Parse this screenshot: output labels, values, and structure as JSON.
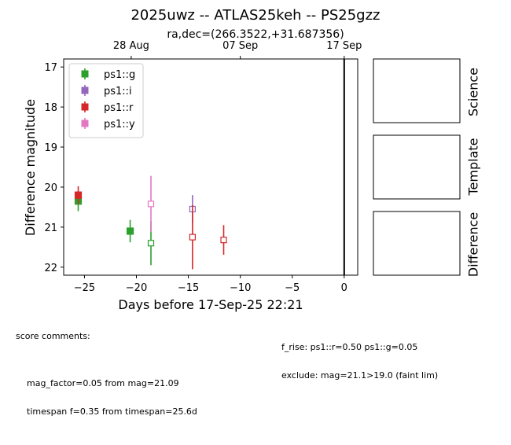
{
  "chart_data": {
    "type": "scatter",
    "title": "2025uwz -- ATLAS25keh -- PS25gzz",
    "subtitle": "ra,dec=(266.3522,+31.687356)",
    "xlabel": "Days before 17-Sep-25 22:21",
    "ylabel": "Difference magnitude",
    "xlim": [
      -27,
      1.3
    ],
    "ylim": [
      22.2,
      16.8
    ],
    "y_inverted": true,
    "x_ticks": [
      -25,
      -20,
      -15,
      -10,
      -5,
      0
    ],
    "x_tick_labels": [
      "−25",
      "−20",
      "−15",
      "−10",
      "−5",
      "0"
    ],
    "y_ticks": [
      17,
      18,
      19,
      20,
      21,
      22
    ],
    "y_tick_labels": [
      "17",
      "18",
      "19",
      "20",
      "21",
      "22"
    ],
    "top_axis_ticks": [
      {
        "x": -20.5,
        "label": "28 Aug"
      },
      {
        "x": -10,
        "label": "07 Sep"
      },
      {
        "x": 0,
        "label": "17 Sep"
      }
    ],
    "vline_x": 0,
    "grid": false,
    "legend_position": "top-left",
    "series": [
      {
        "name": "ps1::g",
        "color": "#2ca02c",
        "points": [
          {
            "x": -25.6,
            "y": 20.35,
            "err": 0.25,
            "filled": true
          },
          {
            "x": -20.6,
            "y": 21.1,
            "err": 0.28,
            "filled": true
          },
          {
            "x": -18.6,
            "y": 21.4,
            "err": 0.55,
            "filled": false
          }
        ]
      },
      {
        "name": "ps1::i",
        "color": "#9467bd",
        "points": [
          {
            "x": -14.6,
            "y": 20.55,
            "err": 0.35,
            "filled": false
          }
        ]
      },
      {
        "name": "ps1::r",
        "color": "#d62728",
        "points": [
          {
            "x": -25.6,
            "y": 20.2,
            "err": 0.22,
            "filled": true
          },
          {
            "x": -14.6,
            "y": 21.25,
            "err": 0.8,
            "filled": false
          },
          {
            "x": -11.6,
            "y": 21.32,
            "err": 0.37,
            "filled": false
          }
        ]
      },
      {
        "name": "ps1::y",
        "color": "#e377c2",
        "points": [
          {
            "x": -18.6,
            "y": 20.42,
            "err": 0.7,
            "filled": false
          }
        ]
      }
    ],
    "panels": [
      "Science",
      "Template",
      "Difference"
    ]
  },
  "comments": {
    "header": "score comments:",
    "left": [
      "mag_factor=0.05 from mag=21.09",
      "timespan f=0.35 from timespan=25.6d"
    ],
    "right": [
      "f_rise: ps1::r=0.50 ps1::g=0.05",
      "exclude: mag=21.1>19.0 (faint lim)"
    ]
  }
}
